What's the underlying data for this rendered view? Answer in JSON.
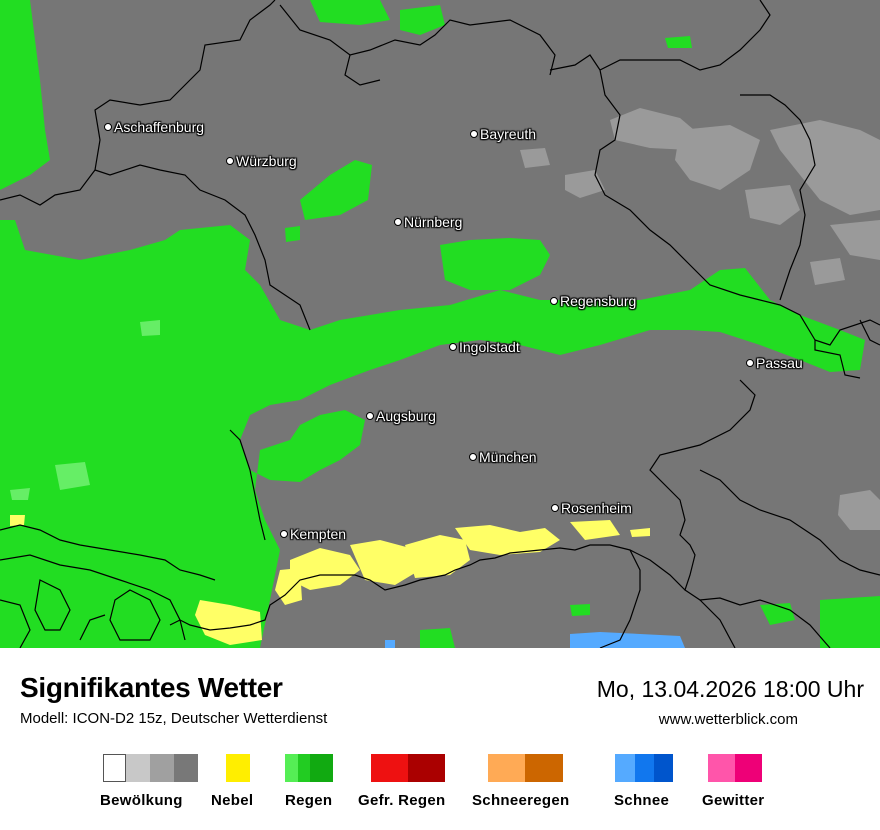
{
  "map": {
    "background_color": "#767676",
    "cloud_light_color": "#9a9a9a",
    "rain_color": "#22dd22",
    "rain_light_color": "#66ee66",
    "fog_color": "#ffff66",
    "snow_color": "#55aaff",
    "border_color": "#000000",
    "cities": [
      {
        "name": "Aschaffenburg"
      },
      {
        "name": "Würzburg"
      },
      {
        "name": "Bayreuth"
      },
      {
        "name": "Nürnberg"
      },
      {
        "name": "Regensburg"
      },
      {
        "name": "Ingolstadt"
      },
      {
        "name": "Passau"
      },
      {
        "name": "Augsburg"
      },
      {
        "name": "München"
      },
      {
        "name": "Rosenheim"
      },
      {
        "name": "Kempten"
      }
    ]
  },
  "header": {
    "title": "Signifikantes Wetter",
    "model": "Modell: ICON-D2 15z, Deutscher Wetterdienst",
    "datetime": "Mo, 13.04.2026 18:00 Uhr",
    "website": "www.wetterblick.com"
  },
  "legend": [
    {
      "label": "Bewölkung",
      "colors": [
        "#ffffff",
        "#c8c8c8",
        "#a0a0a0",
        "#787878"
      ]
    },
    {
      "label": "Nebel",
      "colors": [
        "#ffee00"
      ]
    },
    {
      "label": "Regen",
      "colors": [
        "#55ee55",
        "#22cc22",
        "#11aa11"
      ]
    },
    {
      "label": "Gefr. Regen",
      "colors": [
        "#ee1111",
        "#aa0000"
      ]
    },
    {
      "label": "Schneeregen",
      "colors": [
        "#ffaa55",
        "#cc6600"
      ]
    },
    {
      "label": "Schnee",
      "colors": [
        "#55aaff",
        "#1177ee",
        "#0055cc"
      ]
    },
    {
      "label": "Gewitter",
      "colors": [
        "#ff55aa",
        "#ee0077"
      ]
    }
  ]
}
